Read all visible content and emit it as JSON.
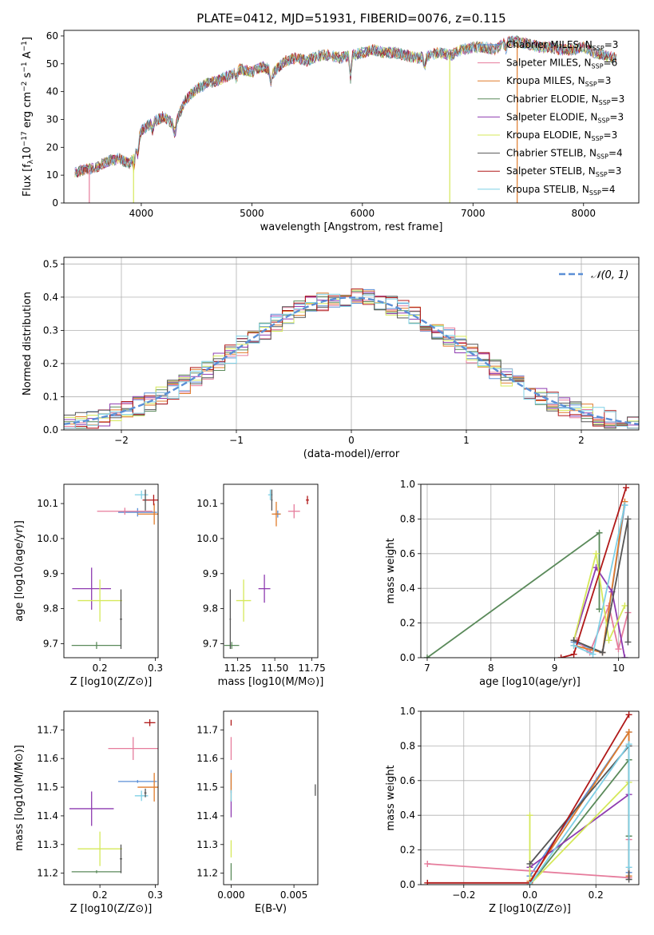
{
  "title": "PLATE=0412, MJD=51931, FIBERID=0076, z=0.115",
  "colors": {
    "chabrier_miles": "#5b8fd6",
    "salpeter_miles": "#e67c9c",
    "kroupa_miles": "#e07b2a",
    "chabrier_elodie": "#5a8a5a",
    "salpeter_elodie": "#8e3bb0",
    "kroupa_elodie": "#d5e85a",
    "chabrier_stelib": "#555555",
    "salpeter_stelib": "#b01818",
    "kroupa_stelib": "#7fd0e6",
    "normal": "#5b8fd6"
  },
  "chart_data": [
    {
      "type": "line",
      "id": "spectrum",
      "xlabel": "wavelength [Angstrom, rest frame]",
      "ylabel": "Flux [f_λ 10^-17 erg cm^-2 s^-1 A^-1]",
      "xlim": [
        3300,
        8500
      ],
      "ylim": [
        0,
        62
      ],
      "xticks": [
        "4000",
        "5000",
        "6000",
        "7000",
        "8000"
      ],
      "yticks": [
        "0",
        "10",
        "20",
        "30",
        "40",
        "50",
        "60"
      ],
      "legend_position": "top-right",
      "series": [
        {
          "name": "Chabrier MILES, N_SSP=3",
          "ssp": "3"
        },
        {
          "name": "Salpeter MILES, N_SSP=6",
          "ssp": "6"
        },
        {
          "name": "Kroupa MILES, N_SSP=3",
          "ssp": "3"
        },
        {
          "name": "Chabrier ELODIE, N_SSP=3",
          "ssp": "3"
        },
        {
          "name": "Salpeter ELODIE, N_SSP=3",
          "ssp": "3"
        },
        {
          "name": "Kroupa ELODIE, N_SSP=3",
          "ssp": "3"
        },
        {
          "name": "Chabrier STELIB, N_SSP=4",
          "ssp": "4"
        },
        {
          "name": "Salpeter STELIB, N_SSP=3",
          "ssp": "3"
        },
        {
          "name": "Kroupa STELIB, N_SSP=4",
          "ssp": "4"
        }
      ],
      "continuum": {
        "x": [
          3400,
          3500,
          3600,
          3700,
          3800,
          3900,
          4000,
          4100,
          4200,
          4300,
          4400,
          4500,
          4600,
          4700,
          4800,
          4900,
          5000,
          5100,
          5200,
          5300,
          5400,
          5500,
          5600,
          5700,
          5800,
          5900,
          6000,
          6100,
          6200,
          6300,
          6400,
          6500,
          6600,
          6700,
          6800,
          6900,
          7000,
          7100,
          7200,
          7300,
          7400,
          7500,
          7600,
          7700,
          7800,
          7900,
          8000,
          8100,
          8200,
          8300
        ],
        "y": [
          11,
          12,
          13,
          15,
          16,
          14,
          26,
          29,
          31,
          28,
          37,
          41,
          43,
          44,
          46,
          48,
          47,
          49,
          47,
          51,
          52,
          51,
          53,
          53,
          52,
          53,
          54,
          55,
          54,
          54,
          53,
          52,
          53,
          54,
          53,
          55,
          56,
          56,
          55,
          58,
          58,
          57,
          56,
          56,
          55,
          55,
          56,
          54,
          53,
          52
        ]
      },
      "drops": [
        {
          "series": "Salpeter MILES",
          "x": 3530
        },
        {
          "series": "Kroupa ELODIE",
          "x": 3930
        },
        {
          "series": "Kroupa ELODIE",
          "x": 6790
        },
        {
          "series": "Kroupa MILES",
          "x": 7400
        }
      ]
    },
    {
      "type": "line",
      "id": "residual-histogram",
      "xlabel": "(data-model)/error",
      "ylabel": "Normed distribution",
      "xlim": [
        -2.5,
        2.5
      ],
      "ylim": [
        0,
        0.52
      ],
      "xticks": [
        "−2",
        "−1",
        "0",
        "1",
        "2"
      ],
      "yticks": [
        "0.0",
        "0.1",
        "0.2",
        "0.3",
        "0.4",
        "0.5"
      ],
      "grid": true,
      "bin_width": 0.1,
      "legend_position": "top-right",
      "normal_curve": {
        "name": "𝒩(0, 1)",
        "mean": 0,
        "sigma": 1
      }
    },
    {
      "type": "scatter",
      "id": "age-vs-metallicity",
      "xlabel": "Z [log10(Z/Z⊙)]",
      "ylabel": "age [log10(age/yr)]",
      "xlim": [
        0.135,
        0.305
      ],
      "ylim": [
        9.66,
        10.155
      ],
      "xticks": [
        "0.2",
        "0.3"
      ],
      "yticks": [
        "9.7",
        "9.8",
        "9.9",
        "10.0",
        "10.1"
      ],
      "points": [
        {
          "key": "chabrier_miles",
          "x": 0.268,
          "y": 10.075,
          "xe": 0.035,
          "ye": 0.012
        },
        {
          "key": "salpeter_miles",
          "x": 0.245,
          "y": 10.078,
          "xe": 0.05,
          "ye": 0.01
        },
        {
          "key": "kroupa_miles",
          "x": 0.298,
          "y": 10.07,
          "xe": 0.03,
          "ye": 0.03
        },
        {
          "key": "chabrier_elodie",
          "x": 0.194,
          "y": 9.695,
          "xe": 0.045,
          "ye": 0.01
        },
        {
          "key": "salpeter_elodie",
          "x": 0.185,
          "y": 9.857,
          "xe": 0.035,
          "ye": 0.06
        },
        {
          "key": "kroupa_elodie",
          "x": 0.2,
          "y": 9.823,
          "xe": 0.04,
          "ye": 0.06
        },
        {
          "key": "chabrier_stelib",
          "x": 0.238,
          "y": 9.77,
          "xe": 0.002,
          "ye": 0.085
        },
        {
          "key": "salpeter_stelib",
          "x": 0.297,
          "y": 10.11,
          "xe": 0.02,
          "ye": 0.015
        },
        {
          "key": "kroupa_stelib",
          "x": 0.275,
          "y": 10.125,
          "xe": 0.012,
          "ye": 0.012
        },
        {
          "key": "chabrier_stelib",
          "x": 0.282,
          "y": 10.11,
          "xe": 0.002,
          "ye": 0.03
        }
      ]
    },
    {
      "type": "scatter",
      "id": "age-vs-mass",
      "xlabel": "mass [log10(M/M⊙)]",
      "ylabel": "",
      "xlim": [
        11.155,
        11.79
      ],
      "ylim": [
        9.66,
        10.155
      ],
      "xticks": [
        "11.25",
        "11.50",
        "11.75"
      ],
      "yticks": [
        "9.7",
        "9.8",
        "9.9",
        "10.0",
        "10.1"
      ],
      "points": [
        {
          "key": "chabrier_miles",
          "x": 11.52,
          "y": 10.07,
          "xe": 0.02,
          "ye": 0.01
        },
        {
          "key": "salpeter_miles",
          "x": 11.63,
          "y": 10.078,
          "xe": 0.04,
          "ye": 0.02
        },
        {
          "key": "kroupa_miles",
          "x": 11.51,
          "y": 10.07,
          "xe": 0.03,
          "ye": 0.035
        },
        {
          "key": "chabrier_elodie",
          "x": 11.21,
          "y": 9.695,
          "xe": 0.05,
          "ye": 0.01
        },
        {
          "key": "salpeter_elodie",
          "x": 11.43,
          "y": 9.857,
          "xe": 0.04,
          "ye": 0.04
        },
        {
          "key": "kroupa_elodie",
          "x": 11.29,
          "y": 9.823,
          "xe": 0.05,
          "ye": 0.06
        },
        {
          "key": "chabrier_stelib",
          "x": 11.2,
          "y": 9.77,
          "xe": 0.005,
          "ye": 0.085
        },
        {
          "key": "salpeter_stelib",
          "x": 11.72,
          "y": 10.11,
          "xe": 0.01,
          "ye": 0.012
        },
        {
          "key": "kroupa_stelib",
          "x": 11.47,
          "y": 10.125,
          "xe": 0.015,
          "ye": 0.015
        },
        {
          "key": "chabrier_stelib",
          "x": 11.48,
          "y": 10.11,
          "xe": 0.005,
          "ye": 0.03
        }
      ]
    },
    {
      "type": "line",
      "id": "mass-weight-vs-age",
      "xlabel": "age [log10(age/yr)]",
      "ylabel": "mass weight",
      "xlim": [
        6.9,
        10.32
      ],
      "ylim": [
        0,
        1
      ],
      "xticks": [
        "7",
        "8",
        "9",
        "10"
      ],
      "yticks": [
        "0.0",
        "0.2",
        "0.4",
        "0.6",
        "0.8",
        "1.0"
      ],
      "grid": true,
      "series": [
        {
          "key": "chabrier_miles",
          "x": [
            9.3,
            9.75,
            10.1
          ],
          "y": [
            0.09,
            0.03,
            0.88
          ]
        },
        {
          "key": "salpeter_miles",
          "x": [
            9.35,
            9.55,
            9.85,
            10.0,
            10.15
          ],
          "y": [
            0.1,
            0.03,
            0.3,
            0.05,
            0.26
          ]
        },
        {
          "key": "kroupa_miles",
          "x": [
            9.3,
            9.75,
            10.1
          ],
          "y": [
            0.07,
            0.03,
            0.9
          ]
        },
        {
          "key": "chabrier_elodie",
          "x": [
            7.0,
            9.7,
            9.7
          ],
          "y": [
            0.0,
            0.72,
            0.28
          ]
        },
        {
          "key": "salpeter_elodie",
          "x": [
            9.3,
            9.65,
            9.9,
            10.1
          ],
          "y": [
            0.1,
            0.52,
            0.38,
            0.0
          ]
        },
        {
          "key": "kroupa_elodie",
          "x": [
            9.3,
            9.65,
            9.85,
            10.1
          ],
          "y": [
            0.1,
            0.6,
            0.1,
            0.3
          ]
        },
        {
          "key": "chabrier_stelib",
          "x": [
            9.3,
            9.75,
            10.15,
            10.15
          ],
          "y": [
            0.1,
            0.03,
            0.8,
            0.09
          ]
        },
        {
          "key": "salpeter_stelib",
          "x": [
            9.1,
            9.3,
            10.12
          ],
          "y": [
            0.0,
            0.02,
            0.98
          ]
        },
        {
          "key": "kroupa_stelib",
          "x": [
            9.3,
            9.6,
            10.1
          ],
          "y": [
            0.07,
            0.02,
            0.88
          ]
        }
      ]
    },
    {
      "type": "scatter",
      "id": "mass-vs-metallicity",
      "xlabel": "Z [log10(Z/Z⊙)]",
      "ylabel": "mass [log10(M/M⊙)]",
      "xlim": [
        0.135,
        0.305
      ],
      "ylim": [
        11.16,
        11.765
      ],
      "xticks": [
        "0.2",
        "0.3"
      ],
      "yticks": [
        "11.2",
        "11.3",
        "11.4",
        "11.5",
        "11.6",
        "11.7"
      ],
      "points": [
        {
          "key": "chabrier_miles",
          "x": 0.268,
          "y": 11.52,
          "xe": 0.035,
          "ye": 0.005
        },
        {
          "key": "salpeter_miles",
          "x": 0.26,
          "y": 11.635,
          "xe": 0.045,
          "ye": 0.04
        },
        {
          "key": "kroupa_miles",
          "x": 0.298,
          "y": 11.5,
          "xe": 0.03,
          "ye": 0.05
        },
        {
          "key": "chabrier_elodie",
          "x": 0.194,
          "y": 11.205,
          "xe": 0.045,
          "ye": 0.005
        },
        {
          "key": "salpeter_elodie",
          "x": 0.185,
          "y": 11.425,
          "xe": 0.04,
          "ye": 0.06
        },
        {
          "key": "kroupa_elodie",
          "x": 0.2,
          "y": 11.285,
          "xe": 0.04,
          "ye": 0.06
        },
        {
          "key": "chabrier_stelib",
          "x": 0.238,
          "y": 11.25,
          "xe": 0.002,
          "ye": 0.05
        },
        {
          "key": "salpeter_stelib",
          "x": 0.29,
          "y": 11.725,
          "xe": 0.01,
          "ye": 0.012
        },
        {
          "key": "kroupa_stelib",
          "x": 0.275,
          "y": 11.47,
          "xe": 0.012,
          "ye": 0.018
        },
        {
          "key": "chabrier_stelib",
          "x": 0.282,
          "y": 11.48,
          "xe": 0.002,
          "ye": 0.015
        }
      ]
    },
    {
      "type": "scatter",
      "id": "mass-vs-extinction",
      "xlabel": "E(B-V)",
      "ylabel": "",
      "xlim": [
        -0.0006,
        0.0069
      ],
      "ylim": [
        11.16,
        11.765
      ],
      "xticks": [
        "0.000",
        "0.005"
      ],
      "yticks": [
        "11.2",
        "11.3",
        "11.4",
        "11.5",
        "11.6",
        "11.7"
      ],
      "points": [
        {
          "key": "chabrier_miles",
          "x": 0.0,
          "y": 11.52,
          "xe": 0.0,
          "ye": 0.04
        },
        {
          "key": "salpeter_miles",
          "x": 0.0,
          "y": 11.635,
          "xe": 0.0,
          "ye": 0.04
        },
        {
          "key": "kroupa_miles",
          "x": 0.0,
          "y": 11.5,
          "xe": 0.0,
          "ye": 0.05
        },
        {
          "key": "chabrier_elodie",
          "x": 0.0,
          "y": 11.205,
          "xe": 0.0,
          "ye": 0.03
        },
        {
          "key": "salpeter_elodie",
          "x": 0.0,
          "y": 11.425,
          "xe": 0.0,
          "ye": 0.03
        },
        {
          "key": "kroupa_elodie",
          "x": 0.0,
          "y": 11.285,
          "xe": 0.0,
          "ye": 0.03
        },
        {
          "key": "salpeter_stelib",
          "x": 0.0,
          "y": 11.725,
          "xe": 0.0,
          "ye": 0.01
        },
        {
          "key": "kroupa_stelib",
          "x": 0.0,
          "y": 11.47,
          "xe": 0.0,
          "ye": 0.02
        },
        {
          "key": "chabrier_stelib",
          "x": 0.0067,
          "y": 11.49,
          "xe": 0.0,
          "ye": 0.02
        }
      ]
    },
    {
      "type": "line",
      "id": "mass-weight-vs-metallicity",
      "xlabel": "Z [log10(Z/Z⊙)]",
      "ylabel": "mass weight",
      "xlim": [
        -0.33,
        0.33
      ],
      "ylim": [
        0,
        1
      ],
      "xticks": [
        "−0.2",
        "0.0",
        "0.2"
      ],
      "yticks": [
        "0.0",
        "0.2",
        "0.4",
        "0.6",
        "0.8",
        "1.0"
      ],
      "grid": true,
      "series": [
        {
          "key": "chabrier_miles",
          "x": [
            0.0,
            0.3,
            0.3
          ],
          "y": [
            0.05,
            0.88,
            0.07
          ]
        },
        {
          "key": "salpeter_miles",
          "x": [
            -0.31,
            0.3,
            0.3
          ],
          "y": [
            0.12,
            0.04,
            0.26
          ]
        },
        {
          "key": "kroupa_miles",
          "x": [
            0.0,
            0.3,
            0.3
          ],
          "y": [
            0.02,
            0.88,
            0.05
          ]
        },
        {
          "key": "chabrier_elodie",
          "x": [
            0.0,
            0.3,
            0.3
          ],
          "y": [
            0.0,
            0.72,
            0.28
          ]
        },
        {
          "key": "salpeter_elodie",
          "x": [
            0.0,
            0.3
          ],
          "y": [
            0.1,
            0.52
          ]
        },
        {
          "key": "kroupa_elodie",
          "x": [
            0.0,
            0.0,
            0.3
          ],
          "y": [
            0.4,
            0.0,
            0.59
          ]
        },
        {
          "key": "chabrier_stelib",
          "x": [
            0.0,
            0.3,
            0.3
          ],
          "y": [
            0.12,
            0.8,
            0.03
          ]
        },
        {
          "key": "salpeter_stelib",
          "x": [
            -0.31,
            0.0,
            0.3
          ],
          "y": [
            0.01,
            0.01,
            0.98
          ]
        },
        {
          "key": "kroupa_stelib",
          "x": [
            0.0,
            0.3,
            0.3
          ],
          "y": [
            0.0,
            0.81,
            0.1
          ]
        }
      ]
    }
  ]
}
